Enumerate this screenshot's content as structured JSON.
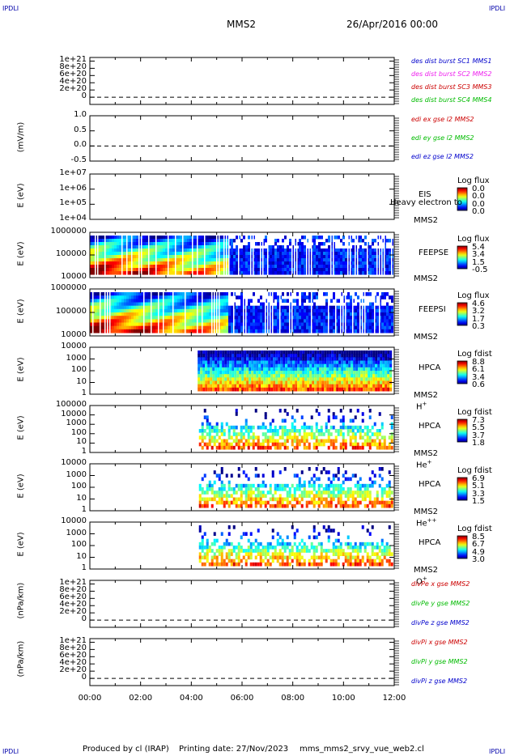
{
  "header": {
    "corner_label": "IPDLI",
    "spacecraft": "MMS2",
    "date": "26/Apr/2016 00:00"
  },
  "footer": {
    "produced_by": "Produced by cl (IRAP)",
    "printing_date": "Printing date: 27/Nov/2023",
    "script": "mms_mms2_srvy_vue_web2.cl"
  },
  "colors": {
    "red": "#dd0000",
    "magenta": "#ee22ee",
    "darkred": "#cc0000",
    "green": "#00bb00",
    "blue": "#0000cc"
  },
  "chart_data": [
    {
      "type": "line",
      "ylabel": "",
      "yticks": [
        "1e+21",
        "8e+20",
        "6e+20",
        "4e+20",
        "2e+20",
        "0"
      ],
      "ylim": [
        -2e+20,
        1.1e+21
      ],
      "zero_line": true,
      "series": [
        {
          "name": "des dist burst SC1 MMS1",
          "color": "#0000cc",
          "values": []
        },
        {
          "name": "des dist burst SC2 MMS2",
          "color": "#ee22ee",
          "values": []
        },
        {
          "name": "des dist burst SC3 MMS3",
          "color": "#cc0000",
          "values": []
        },
        {
          "name": "des dist burst SC4 MMS4",
          "color": "#00bb00",
          "values": []
        }
      ]
    },
    {
      "type": "line",
      "ylabel": "(mV/m)",
      "yticks": [
        "1.0",
        "0.5",
        "0.0",
        "-0.5"
      ],
      "ylim": [
        -0.5,
        1.0
      ],
      "zero_line": true,
      "series": [
        {
          "name": "edi ex gse l2 MMS2",
          "color": "#cc0000",
          "values": []
        },
        {
          "name": "edi ey gse l2 MMS2",
          "color": "#00bb00",
          "values": []
        },
        {
          "name": "edi ez gse l2 MMS2",
          "color": "#0000cc",
          "values": []
        }
      ]
    },
    {
      "type": "heatmap",
      "ylabel": "E (eV)",
      "yticks": [
        "1e+07",
        "1e+06",
        "1e+05",
        "1e+04"
      ],
      "log_y": true,
      "instrument": "EIS",
      "species": "Heavy electron to",
      "sc": "MMS2",
      "cbar_title": "Log flux",
      "cbar_values": [
        "0.0",
        "0.0",
        "0.0",
        "0.0"
      ],
      "data_coverage": []
    },
    {
      "type": "heatmap",
      "ylabel": "E (eV)",
      "yticks": [
        "1000000",
        "100000",
        "10000"
      ],
      "log_y": true,
      "instrument": "FEEPSE",
      "sc": "MMS2",
      "cbar_title": "Log flux",
      "cbar_values": [
        "5.4",
        "3.4",
        "1.5",
        "-0.5"
      ],
      "data_coverage": [
        0,
        12
      ]
    },
    {
      "type": "heatmap",
      "ylabel": "E (eV)",
      "yticks": [
        "1000000",
        "100000",
        "10000"
      ],
      "log_y": true,
      "instrument": "FEEPSI",
      "sc": "MMS2",
      "cbar_title": "Log flux",
      "cbar_values": [
        "4.6",
        "3.2",
        "1.7",
        "0.3"
      ],
      "data_coverage": [
        0,
        12
      ]
    },
    {
      "type": "heatmap",
      "ylabel": "E (eV)",
      "yticks": [
        "10000",
        "1000",
        "100",
        "10",
        "1"
      ],
      "log_y": true,
      "instrument": "HPCA",
      "sc": "MMS2",
      "species": "H",
      "species_sup": "+",
      "cbar_title": "Log fdist",
      "cbar_values": [
        "8.8",
        "6.1",
        "3.4",
        "0.6"
      ],
      "data_coverage": [
        4.25,
        12
      ]
    },
    {
      "type": "heatmap",
      "ylabel": "E (eV)",
      "yticks": [
        "100000",
        "10000",
        "1000",
        "100",
        "10",
        "1"
      ],
      "log_y": true,
      "instrument": "HPCA",
      "sc": "MMS2",
      "species": "He",
      "species_sup": "+",
      "cbar_title": "Log fdist",
      "cbar_values": [
        "7.3",
        "5.5",
        "3.7",
        "1.8"
      ],
      "data_coverage": [
        4.3,
        12
      ]
    },
    {
      "type": "heatmap",
      "ylabel": "E (eV)",
      "yticks": [
        "10000",
        "1000",
        "100",
        "10",
        "1"
      ],
      "log_y": true,
      "instrument": "HPCA",
      "sc": "MMS2",
      "species": "He",
      "species_sup": "++",
      "cbar_title": "Log fdist",
      "cbar_values": [
        "6.9",
        "5.1",
        "3.3",
        "1.5"
      ],
      "data_coverage": [
        4.3,
        12
      ]
    },
    {
      "type": "heatmap",
      "ylabel": "E (eV)",
      "yticks": [
        "10000",
        "1000",
        "100",
        "10",
        "1"
      ],
      "log_y": true,
      "instrument": "HPCA",
      "sc": "MMS2",
      "species": "O",
      "species_sup": "+",
      "cbar_title": "Log fdist",
      "cbar_values": [
        "8.5",
        "6.7",
        "4.9",
        "3.0"
      ],
      "data_coverage": [
        4.3,
        12
      ]
    },
    {
      "type": "line",
      "ylabel": "(nPa/km)",
      "yticks": [
        "1e+21",
        "8e+20",
        "6e+20",
        "4e+20",
        "2e+20",
        "0"
      ],
      "ylim": [
        -2e+20,
        1.1e+21
      ],
      "zero_line": true,
      "series": [
        {
          "name": "divPe x gse MMS2",
          "color": "#cc0000",
          "values": []
        },
        {
          "name": "divPe y gse MMS2",
          "color": "#00bb00",
          "values": []
        },
        {
          "name": "divPe z gse MMS2",
          "color": "#0000cc",
          "values": []
        }
      ]
    },
    {
      "type": "line",
      "ylabel": "(nPa/km)",
      "yticks": [
        "1e+21",
        "8e+20",
        "6e+20",
        "4e+20",
        "2e+20",
        "0"
      ],
      "ylim": [
        -2e+20,
        1.1e+21
      ],
      "zero_line": true,
      "series": [
        {
          "name": "divPi x gse MMS2",
          "color": "#cc0000",
          "values": []
        },
        {
          "name": "divPi y gse MMS2",
          "color": "#00bb00",
          "values": []
        },
        {
          "name": "divPi z gse MMS2",
          "color": "#0000cc",
          "values": []
        }
      ]
    }
  ],
  "x_axis": {
    "ticks": [
      "00:00",
      "02:00",
      "04:00",
      "06:00",
      "08:00",
      "10:00",
      "12:00"
    ],
    "range_hours": [
      0,
      12
    ]
  }
}
